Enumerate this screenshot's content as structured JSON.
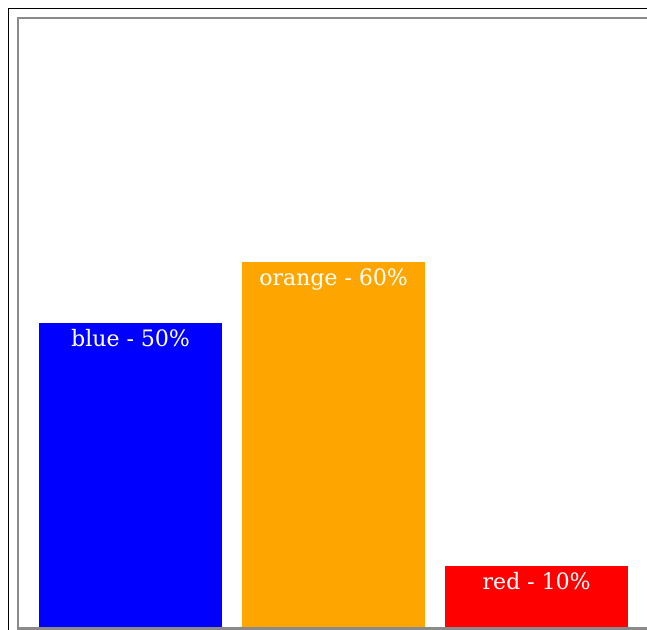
{
  "chart_data": {
    "type": "bar",
    "categories": [
      "blue",
      "orange",
      "red"
    ],
    "values": [
      50,
      60,
      10
    ],
    "data_labels": [
      "blue - 50%",
      "orange - 60%",
      "red - 10%"
    ],
    "colors": [
      "#0000ff",
      "#ffa500",
      "#ff0000"
    ],
    "ylim": [
      0,
      100
    ],
    "grid": false,
    "legend": "none"
  }
}
